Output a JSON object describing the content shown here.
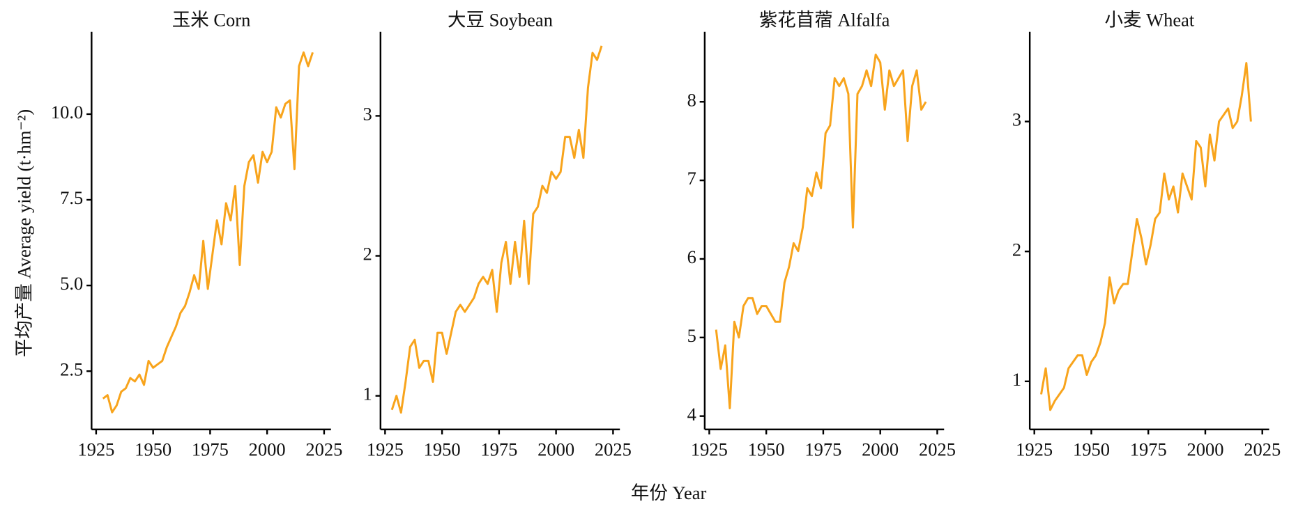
{
  "xlabel": "年份 Year",
  "ylabel": "平均产量 Average yield (t·hm⁻²)",
  "chart_data": [
    {
      "type": "line",
      "title": "玉米 Corn",
      "color": "#f8a41c",
      "x": [
        1928,
        1930,
        1932,
        1934,
        1936,
        1938,
        1940,
        1942,
        1944,
        1946,
        1948,
        1950,
        1952,
        1954,
        1956,
        1958,
        1960,
        1962,
        1964,
        1966,
        1968,
        1970,
        1972,
        1974,
        1976,
        1978,
        1980,
        1982,
        1984,
        1986,
        1988,
        1990,
        1992,
        1994,
        1996,
        1998,
        2000,
        2002,
        2004,
        2006,
        2008,
        2010,
        2012,
        2014,
        2016,
        2018,
        2020
      ],
      "values": [
        1.7,
        1.8,
        1.3,
        1.5,
        1.9,
        2.0,
        2.3,
        2.2,
        2.4,
        2.1,
        2.8,
        2.6,
        2.7,
        2.8,
        3.2,
        3.5,
        3.8,
        4.2,
        4.4,
        4.8,
        5.3,
        4.9,
        6.3,
        4.9,
        5.9,
        6.9,
        6.2,
        7.4,
        6.9,
        7.9,
        5.6,
        7.9,
        8.6,
        8.8,
        8.0,
        8.9,
        8.6,
        8.9,
        10.2,
        9.9,
        10.3,
        10.4,
        8.4,
        11.4,
        11.8,
        11.4,
        11.8
      ],
      "xlim": [
        1923,
        2028
      ],
      "xticks": [
        1925,
        1950,
        1975,
        2000,
        2025
      ],
      "ylim": [
        0.8,
        12.4
      ],
      "yticks": [
        2.5,
        {
          "value": 5,
          "label": "5.0"
        },
        7.5,
        {
          "value": 10,
          "label": "10.0"
        }
      ]
    },
    {
      "type": "line",
      "title": "大豆 Soybean",
      "color": "#f8a41c",
      "x": [
        1928,
        1930,
        1932,
        1934,
        1936,
        1938,
        1940,
        1942,
        1944,
        1946,
        1948,
        1950,
        1952,
        1954,
        1956,
        1958,
        1960,
        1962,
        1964,
        1966,
        1968,
        1970,
        1972,
        1974,
        1976,
        1978,
        1980,
        1982,
        1984,
        1986,
        1988,
        1990,
        1992,
        1994,
        1996,
        1998,
        2000,
        2002,
        2004,
        2006,
        2008,
        2010,
        2012,
        2014,
        2016,
        2018,
        2020
      ],
      "values": [
        0.9,
        1.0,
        0.88,
        1.1,
        1.35,
        1.4,
        1.2,
        1.25,
        1.25,
        1.1,
        1.45,
        1.45,
        1.3,
        1.45,
        1.6,
        1.65,
        1.6,
        1.65,
        1.7,
        1.8,
        1.85,
        1.8,
        1.9,
        1.6,
        1.95,
        2.1,
        1.8,
        2.1,
        1.85,
        2.25,
        1.8,
        2.3,
        2.35,
        2.5,
        2.45,
        2.6,
        2.55,
        2.6,
        2.85,
        2.85,
        2.7,
        2.9,
        2.7,
        3.2,
        3.45,
        3.4,
        3.5
      ],
      "xlim": [
        1923,
        2028
      ],
      "xticks": [
        1925,
        1950,
        1975,
        2000,
        2025
      ],
      "ylim": [
        0.76,
        3.6
      ],
      "yticks": [
        1,
        2,
        3
      ]
    },
    {
      "type": "line",
      "title": "紫花苜蓿 Alfalfa",
      "color": "#f8a41c",
      "x": [
        1928,
        1930,
        1932,
        1934,
        1936,
        1938,
        1940,
        1942,
        1944,
        1946,
        1948,
        1950,
        1952,
        1954,
        1956,
        1958,
        1960,
        1962,
        1964,
        1966,
        1968,
        1970,
        1972,
        1974,
        1976,
        1978,
        1980,
        1982,
        1984,
        1986,
        1988,
        1990,
        1992,
        1994,
        1996,
        1998,
        2000,
        2002,
        2004,
        2006,
        2008,
        2010,
        2012,
        2014,
        2016,
        2018,
        2020
      ],
      "values": [
        5.1,
        4.6,
        4.9,
        4.1,
        5.2,
        5.0,
        5.4,
        5.5,
        5.5,
        5.3,
        5.4,
        5.4,
        5.3,
        5.2,
        5.2,
        5.7,
        5.9,
        6.2,
        6.1,
        6.4,
        6.9,
        6.8,
        7.1,
        6.9,
        7.6,
        7.7,
        8.3,
        8.2,
        8.3,
        8.1,
        6.4,
        8.1,
        8.2,
        8.4,
        8.2,
        8.6,
        8.5,
        7.9,
        8.4,
        8.2,
        8.3,
        8.4,
        7.5,
        8.2,
        8.4,
        7.9,
        8.0
      ],
      "xlim": [
        1923,
        2028
      ],
      "xticks": [
        1925,
        1950,
        1975,
        2000,
        2025
      ],
      "ylim": [
        3.83,
        8.89
      ],
      "yticks": [
        4,
        5,
        6,
        7,
        8
      ]
    },
    {
      "type": "line",
      "title": "小麦 Wheat",
      "color": "#f8a41c",
      "x": [
        1928,
        1930,
        1932,
        1934,
        1936,
        1938,
        1940,
        1942,
        1944,
        1946,
        1948,
        1950,
        1952,
        1954,
        1956,
        1958,
        1960,
        1962,
        1964,
        1966,
        1968,
        1970,
        1972,
        1974,
        1976,
        1978,
        1980,
        1982,
        1984,
        1986,
        1988,
        1990,
        1992,
        1994,
        1996,
        1998,
        2000,
        2002,
        2004,
        2006,
        2008,
        2010,
        2012,
        2014,
        2016,
        2018,
        2020
      ],
      "values": [
        0.9,
        1.1,
        0.78,
        0.85,
        0.9,
        0.95,
        1.1,
        1.15,
        1.2,
        1.2,
        1.05,
        1.15,
        1.2,
        1.3,
        1.45,
        1.8,
        1.6,
        1.7,
        1.75,
        1.75,
        2.0,
        2.25,
        2.1,
        1.9,
        2.05,
        2.25,
        2.3,
        2.6,
        2.4,
        2.5,
        2.3,
        2.6,
        2.5,
        2.4,
        2.85,
        2.8,
        2.5,
        2.9,
        2.7,
        3.0,
        3.05,
        3.1,
        2.95,
        3.0,
        3.2,
        3.45,
        3.0
      ],
      "xlim": [
        1923,
        2028
      ],
      "xticks": [
        1925,
        1950,
        1975,
        2000,
        2025
      ],
      "ylim": [
        0.63,
        3.69
      ],
      "yticks": [
        1,
        2,
        3
      ]
    }
  ]
}
